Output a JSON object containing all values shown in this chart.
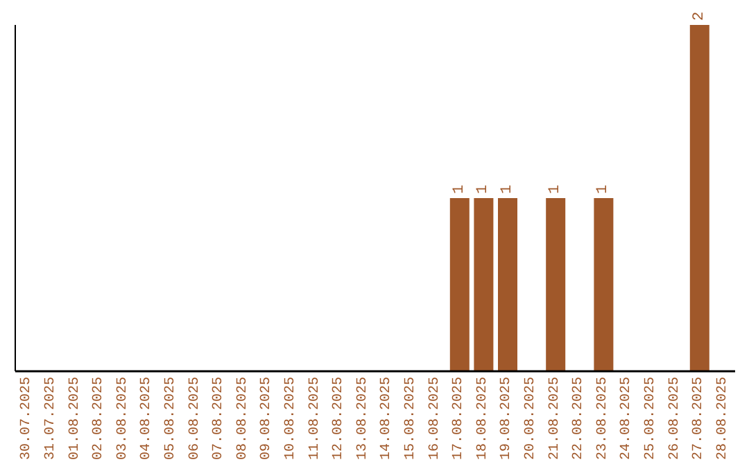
{
  "chart_data": {
    "type": "bar",
    "categories": [
      "30.07.2025",
      "31.07.2025",
      "01.08.2025",
      "02.08.2025",
      "03.08.2025",
      "04.08.2025",
      "05.08.2025",
      "06.08.2025",
      "07.08.2025",
      "08.08.2025",
      "09.08.2025",
      "10.08.2025",
      "11.08.2025",
      "12.08.2025",
      "13.08.2025",
      "14.08.2025",
      "15.08.2025",
      "16.08.2025",
      "17.08.2025",
      "18.08.2025",
      "19.08.2025",
      "20.08.2025",
      "21.08.2025",
      "22.08.2025",
      "23.08.2025",
      "24.08.2025",
      "25.08.2025",
      "26.08.2025",
      "27.08.2025",
      "28.08.2025"
    ],
    "values": [
      null,
      null,
      null,
      null,
      null,
      null,
      null,
      null,
      null,
      null,
      null,
      null,
      null,
      null,
      null,
      null,
      null,
      null,
      1,
      1,
      1,
      null,
      1,
      null,
      1,
      null,
      null,
      null,
      2,
      null
    ],
    "value_labels": [
      null,
      null,
      null,
      null,
      null,
      null,
      null,
      null,
      null,
      null,
      null,
      null,
      null,
      null,
      null,
      null,
      null,
      null,
      "1",
      "1",
      "1",
      null,
      "1",
      null,
      "1",
      null,
      null,
      null,
      "2",
      null
    ],
    "color": "#a0582a",
    "tick_labels": "x",
    "grid": false,
    "legend": false
  }
}
